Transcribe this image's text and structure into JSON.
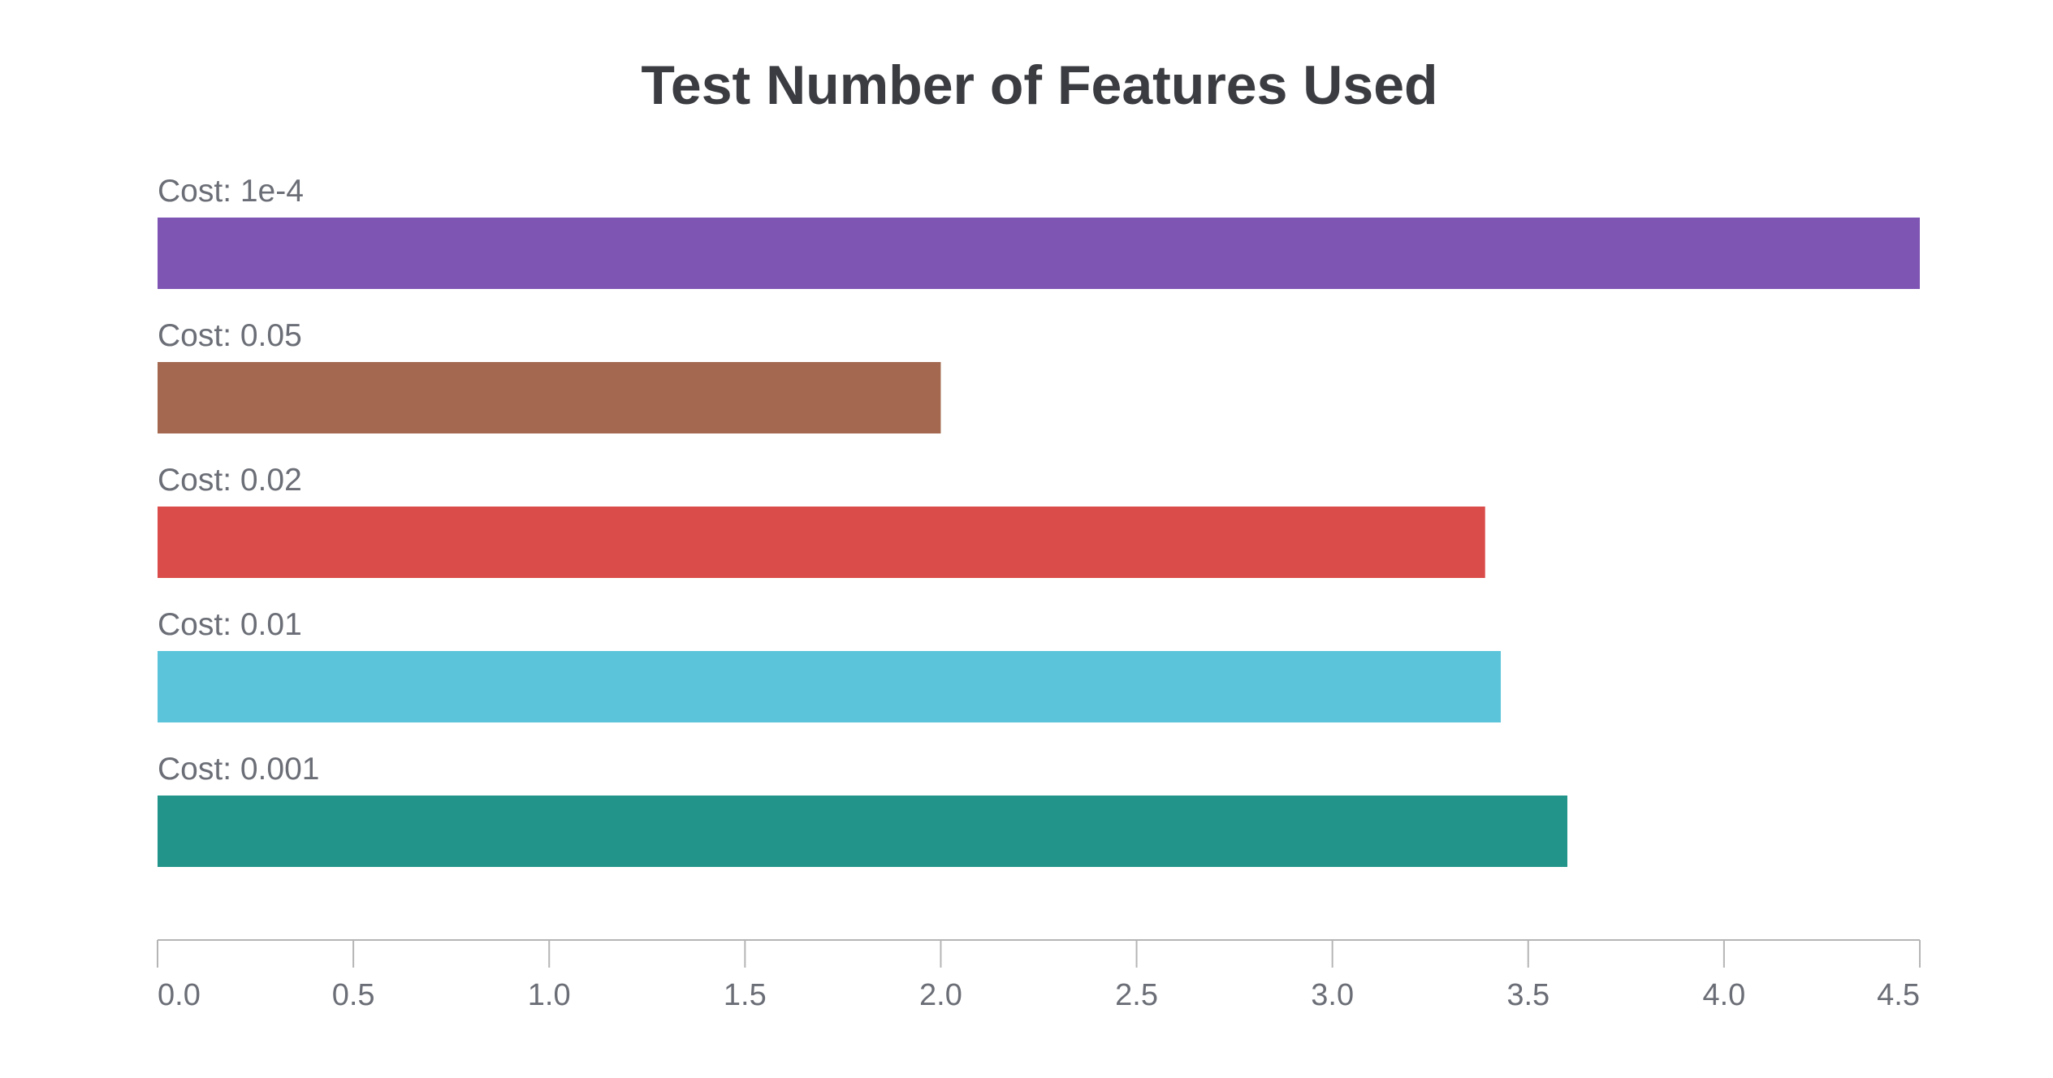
{
  "chart_data": {
    "type": "bar",
    "orientation": "horizontal",
    "title": "Test Number of Features Used",
    "xlabel": "",
    "ylabel": "",
    "xlim": [
      0,
      4.5
    ],
    "x_ticks": [
      "0.0",
      "0.5",
      "1.0",
      "1.5",
      "2.0",
      "2.5",
      "3.0",
      "3.5",
      "4.0",
      "4.5"
    ],
    "x_tick_values": [
      0,
      0.5,
      1.0,
      1.5,
      2.0,
      2.5,
      3.0,
      3.5,
      4.0,
      4.5
    ],
    "grid": false,
    "legend": "none",
    "categories": [
      "Cost: 1e-4",
      "Cost: 0.05",
      "Cost: 0.02",
      "Cost: 0.01",
      "Cost: 0.001"
    ],
    "values": [
      4.5,
      2.0,
      3.39,
      3.43,
      3.6
    ],
    "colors": [
      "#7f55b4",
      "#a3684f",
      "#da4c4a",
      "#5bc4da",
      "#22948a"
    ]
  }
}
